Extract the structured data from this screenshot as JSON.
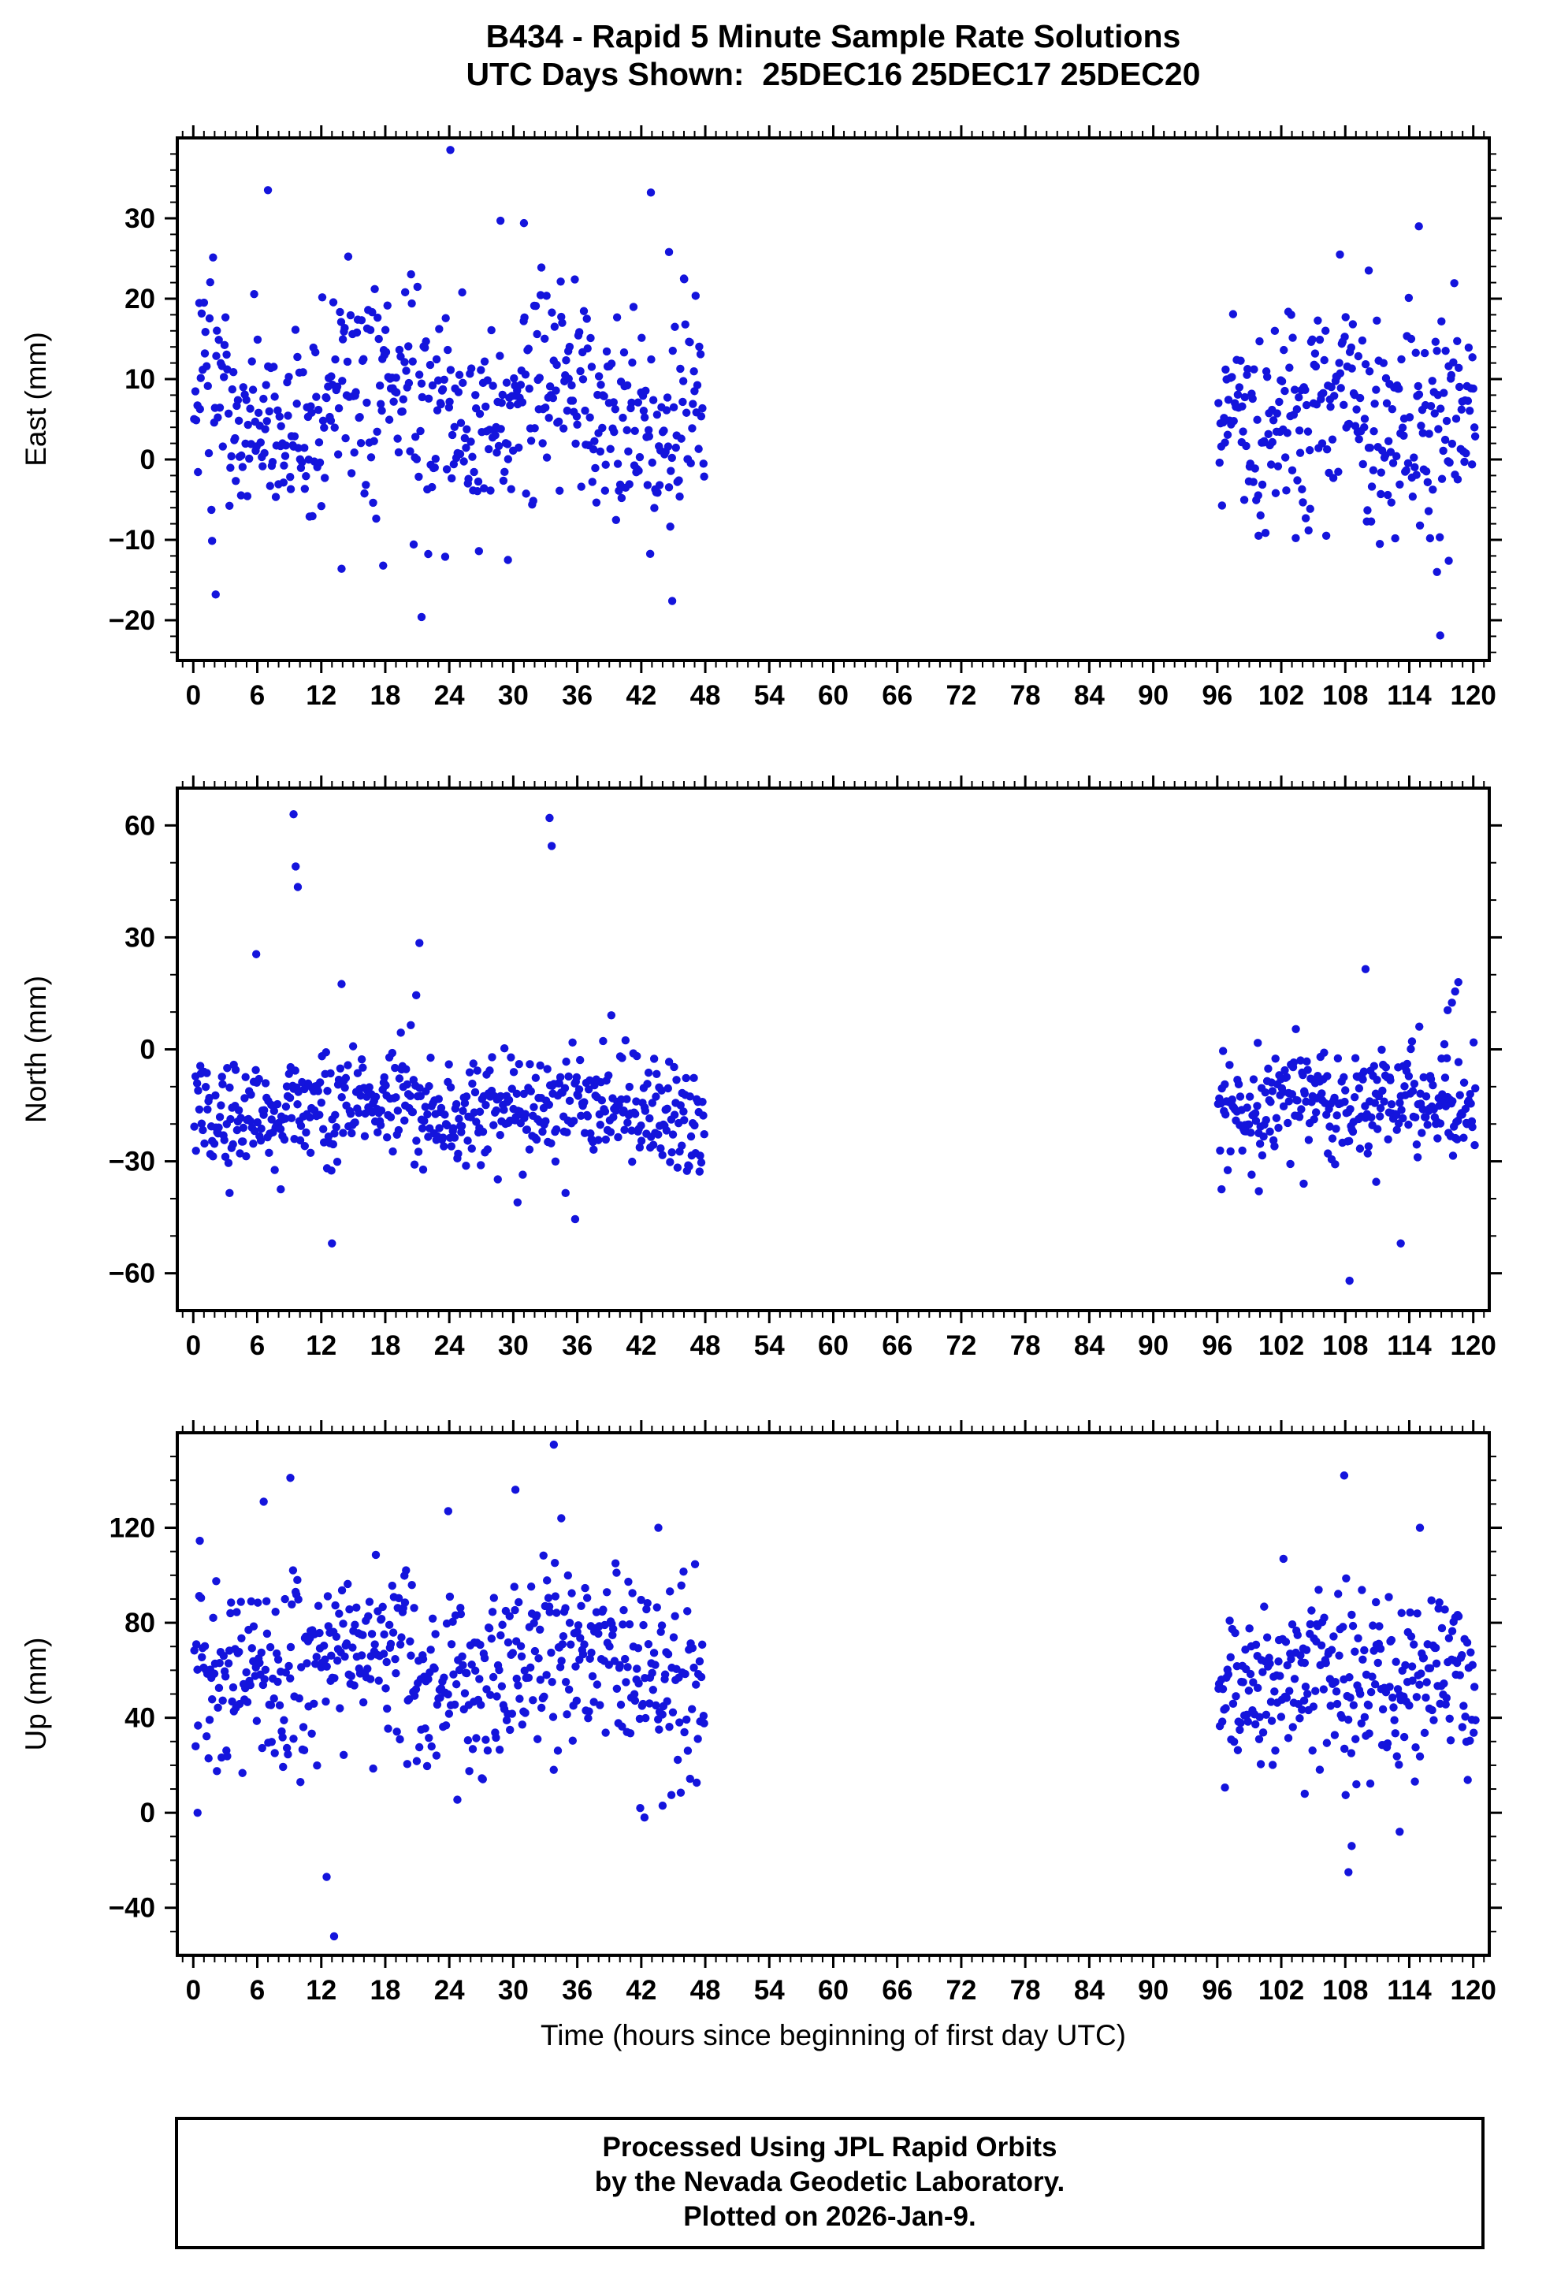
{
  "title": {
    "line1": "B434 - Rapid 5 Minute Sample Rate Solutions",
    "line2": "UTC Days Shown:  25DEC16 25DEC17 25DEC20"
  },
  "footer": {
    "line1": "Processed Using JPL Rapid Orbits",
    "line2": "by the Nevada Geodetic Laboratory.",
    "line3": "Plotted on 2026-Jan-9."
  },
  "chart_data": {
    "type": "scatter",
    "station": "B434",
    "utc_days_shown": [
      "25DEC16",
      "25DEC17",
      "25DEC20"
    ],
    "xlabel": "Time (hours since beginning of first day UTC)",
    "point_color": "#1414dc",
    "point_radius": 5.2,
    "frame_color": "#000000",
    "x_axis": {
      "lim": [
        -1.5,
        121.5
      ],
      "major_ticks": [
        0,
        6,
        12,
        18,
        24,
        30,
        36,
        42,
        48,
        54,
        60,
        66,
        72,
        78,
        84,
        90,
        96,
        102,
        108,
        114,
        120
      ],
      "minor_step": 1
    },
    "panels": [
      {
        "name": "East",
        "ylabel": "East (mm)",
        "ylim": [
          -25,
          40
        ],
        "yticks": [
          -20,
          -10,
          0,
          10,
          20,
          30
        ],
        "minor_step": 2,
        "clusters": [
          {
            "x0": 0.1,
            "x1": 47.9,
            "n": 540,
            "mean": 6.5,
            "sd": 6.6,
            "clip": [
              -17.5,
              26.5
            ],
            "drift_amp": 3.2,
            "drift_period": 17.0,
            "seed": 101
          },
          {
            "x0": 96.1,
            "x1": 120.2,
            "n": 280,
            "mean": 4.8,
            "sd": 6.4,
            "clip": [
              -13.5,
              24.5
            ],
            "drift_amp": 2.6,
            "drift_period": 12.0,
            "seed": 102
          }
        ],
        "outliers": [
          [
            24.1,
            38.5
          ],
          [
            7.0,
            33.5
          ],
          [
            42.9,
            33.2
          ],
          [
            28.8,
            29.7
          ],
          [
            31.0,
            29.4
          ],
          [
            44.6,
            25.8
          ],
          [
            46.0,
            22.5
          ],
          [
            2.1,
            -16.8
          ],
          [
            21.4,
            -19.6
          ],
          [
            44.9,
            -17.6
          ],
          [
            13.9,
            -13.6
          ],
          [
            17.8,
            -13.2
          ],
          [
            29.5,
            -12.5
          ],
          [
            114.9,
            29.0
          ],
          [
            116.9,
            -21.9
          ],
          [
            116.6,
            -14.0
          ],
          [
            117.7,
            -12.6
          ],
          [
            107.5,
            25.5
          ],
          [
            110.2,
            23.5
          ]
        ]
      },
      {
        "name": "North",
        "ylabel": "North (mm)",
        "ylim": [
          -70,
          70
        ],
        "yticks": [
          -60,
          -30,
          0,
          30,
          60
        ],
        "minor_step": 10,
        "clusters": [
          {
            "x0": 0.1,
            "x1": 47.9,
            "n": 540,
            "mean": -15.5,
            "sd": 7.4,
            "clip": [
              -35.5,
              12.5
            ],
            "drift_amp": 2.6,
            "drift_period": 19.0,
            "seed": 201
          },
          {
            "x0": 96.1,
            "x1": 120.2,
            "n": 280,
            "mean": -15.0,
            "sd": 7.6,
            "clip": [
              -34.5,
              8.5
            ],
            "drift_amp": 2.4,
            "drift_period": 11.0,
            "seed": 202
          }
        ],
        "outliers": [
          [
            9.4,
            63.0
          ],
          [
            9.6,
            49.0
          ],
          [
            9.8,
            43.5
          ],
          [
            33.4,
            62.0
          ],
          [
            33.6,
            54.5
          ],
          [
            21.2,
            28.5
          ],
          [
            5.9,
            25.5
          ],
          [
            13.9,
            17.5
          ],
          [
            20.9,
            14.5
          ],
          [
            13.0,
            -52.0
          ],
          [
            35.8,
            -45.5
          ],
          [
            30.4,
            -41.0
          ],
          [
            3.4,
            -38.5
          ],
          [
            8.2,
            -37.5
          ],
          [
            34.9,
            -38.5
          ],
          [
            108.4,
            -62.0
          ],
          [
            113.2,
            -52.0
          ],
          [
            118.6,
            18.0
          ],
          [
            118.3,
            15.5
          ],
          [
            118.0,
            12.5
          ],
          [
            117.6,
            10.5
          ],
          [
            109.9,
            21.5
          ],
          [
            96.4,
            -37.5
          ],
          [
            99.9,
            -38.0
          ],
          [
            104.1,
            -36.0
          ],
          [
            110.9,
            -35.5
          ]
        ]
      },
      {
        "name": "Up",
        "ylabel": "Up (mm)",
        "ylim": [
          -60,
          160
        ],
        "yticks": [
          -40,
          0,
          40,
          80,
          120
        ],
        "minor_step": 10,
        "clusters": [
          {
            "x0": 0.1,
            "x1": 47.9,
            "n": 540,
            "mean": 61.0,
            "sd": 20.0,
            "clip": [
              4.0,
              123.0
            ],
            "drift_amp": 7.0,
            "drift_period": 21.0,
            "seed": 301
          },
          {
            "x0": 96.1,
            "x1": 120.2,
            "n": 280,
            "mean": 56.0,
            "sd": 18.0,
            "clip": [
              4.0,
              111.0
            ],
            "drift_amp": 6.0,
            "drift_period": 13.0,
            "seed": 302
          }
        ],
        "outliers": [
          [
            33.8,
            155.0
          ],
          [
            9.1,
            141.0
          ],
          [
            30.2,
            136.0
          ],
          [
            6.6,
            131.0
          ],
          [
            23.9,
            127.0
          ],
          [
            34.5,
            124.0
          ],
          [
            43.6,
            120.0
          ],
          [
            12.5,
            -27.0
          ],
          [
            13.2,
            -52.0
          ],
          [
            0.4,
            0.0
          ],
          [
            42.3,
            -2.0
          ],
          [
            41.9,
            2.0
          ],
          [
            44.0,
            3.0
          ],
          [
            107.9,
            142.0
          ],
          [
            115.0,
            120.0
          ],
          [
            108.3,
            -25.0
          ],
          [
            108.6,
            -14.0
          ],
          [
            113.1,
            -8.0
          ],
          [
            104.2,
            8.0
          ]
        ]
      }
    ]
  }
}
